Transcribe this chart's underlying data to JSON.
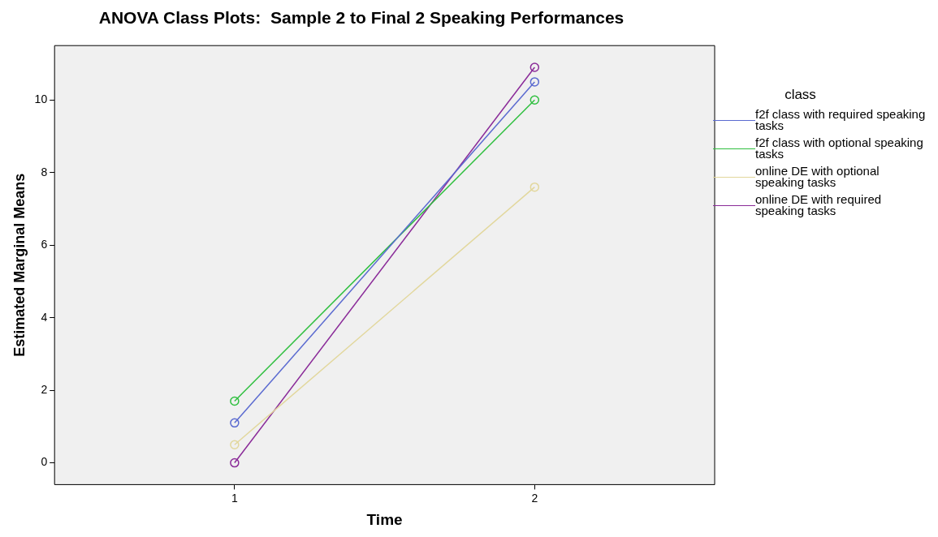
{
  "chart_data": {
    "type": "line",
    "title": "ANOVA Class Plots:  Sample 2 to Final 2 Speaking Performances",
    "xlabel": "Time",
    "ylabel": "Estimated Marginal Means",
    "legend_title": "class",
    "x": [
      1,
      2
    ],
    "xlim": [
      0.4,
      2.6
    ],
    "xticks": [
      1,
      2
    ],
    "ylim": [
      -0.6,
      11.5
    ],
    "yticks": [
      0,
      2,
      4,
      6,
      8,
      10
    ],
    "series": [
      {
        "name": "f2f class with required speaking tasks",
        "color": "#5a6ad0",
        "values": [
          1.1,
          10.5
        ]
      },
      {
        "name": "f2f class with optional speaking tasks",
        "color": "#2fbf3f",
        "values": [
          1.7,
          10.0
        ]
      },
      {
        "name": "online DE with optional speaking tasks",
        "color": "#e2d79c",
        "values": [
          0.5,
          7.6
        ]
      },
      {
        "name": "online DE with required speaking tasks",
        "color": "#8a2a98",
        "values": [
          0.0,
          10.9
        ]
      }
    ],
    "grid": false,
    "legend": "right",
    "marker": "circle",
    "line_style": "solid"
  }
}
